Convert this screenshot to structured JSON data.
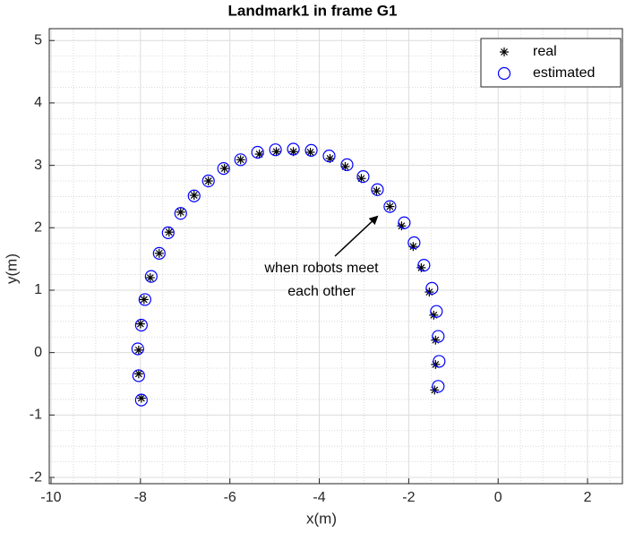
{
  "chart_data": {
    "type": "scatter",
    "title": "Landmark1 in frame G1",
    "x_label": "x(m)",
    "y_label": "y(m)",
    "xlim": [
      -10.04,
      2.78
    ],
    "ylim": [
      -2.1,
      5.19
    ],
    "xticks": [
      -10,
      -8,
      -6,
      -4,
      -2,
      0,
      2
    ],
    "yticks": [
      -2,
      -1,
      0,
      1,
      2,
      3,
      4,
      5
    ],
    "grid": true,
    "minor_grid": true,
    "legend_position": "northeast",
    "annotation": [
      "when robots meet",
      "each other"
    ],
    "series": [
      {
        "name": "real",
        "marker": "asterisk",
        "color": "#000000",
        "x": [
          -7.98,
          -8.04,
          -8.04,
          -8.0,
          -7.92,
          -7.78,
          -7.58,
          -7.36,
          -7.1,
          -6.8,
          -6.48,
          -6.12,
          -5.76,
          -5.34,
          -4.96,
          -4.58,
          -4.2,
          -3.76,
          -3.42,
          -3.06,
          -2.72,
          -2.42,
          -2.16,
          -1.9,
          -1.72,
          -1.54,
          -1.44,
          -1.4,
          -1.4,
          -1.42
        ],
        "values": [
          -0.73,
          -0.34,
          0.04,
          0.46,
          0.85,
          1.2,
          1.59,
          1.93,
          2.25,
          2.52,
          2.75,
          2.95,
          3.09,
          3.18,
          3.22,
          3.22,
          3.21,
          3.11,
          2.98,
          2.79,
          2.59,
          2.34,
          2.03,
          1.7,
          1.36,
          0.97,
          0.6,
          0.2,
          -0.19,
          -0.6
        ]
      },
      {
        "name": "estimated",
        "marker": "circle",
        "color": "#0000ff",
        "x": [
          -7.98,
          -8.04,
          -8.06,
          -7.98,
          -7.9,
          -7.76,
          -7.58,
          -7.38,
          -7.1,
          -6.8,
          -6.48,
          -6.14,
          -5.76,
          -5.38,
          -4.98,
          -4.58,
          -4.18,
          -3.78,
          -3.38,
          -3.02,
          -2.7,
          -2.42,
          -2.1,
          -1.88,
          -1.66,
          -1.48,
          -1.38,
          -1.34,
          -1.32,
          -1.34
        ],
        "values": [
          -0.76,
          -0.37,
          0.06,
          0.44,
          0.85,
          1.22,
          1.59,
          1.92,
          2.23,
          2.51,
          2.75,
          2.95,
          3.09,
          3.21,
          3.25,
          3.26,
          3.24,
          3.15,
          3.01,
          2.82,
          2.61,
          2.34,
          2.08,
          1.76,
          1.4,
          1.03,
          0.66,
          0.26,
          -0.14,
          -0.54
        ]
      }
    ]
  }
}
